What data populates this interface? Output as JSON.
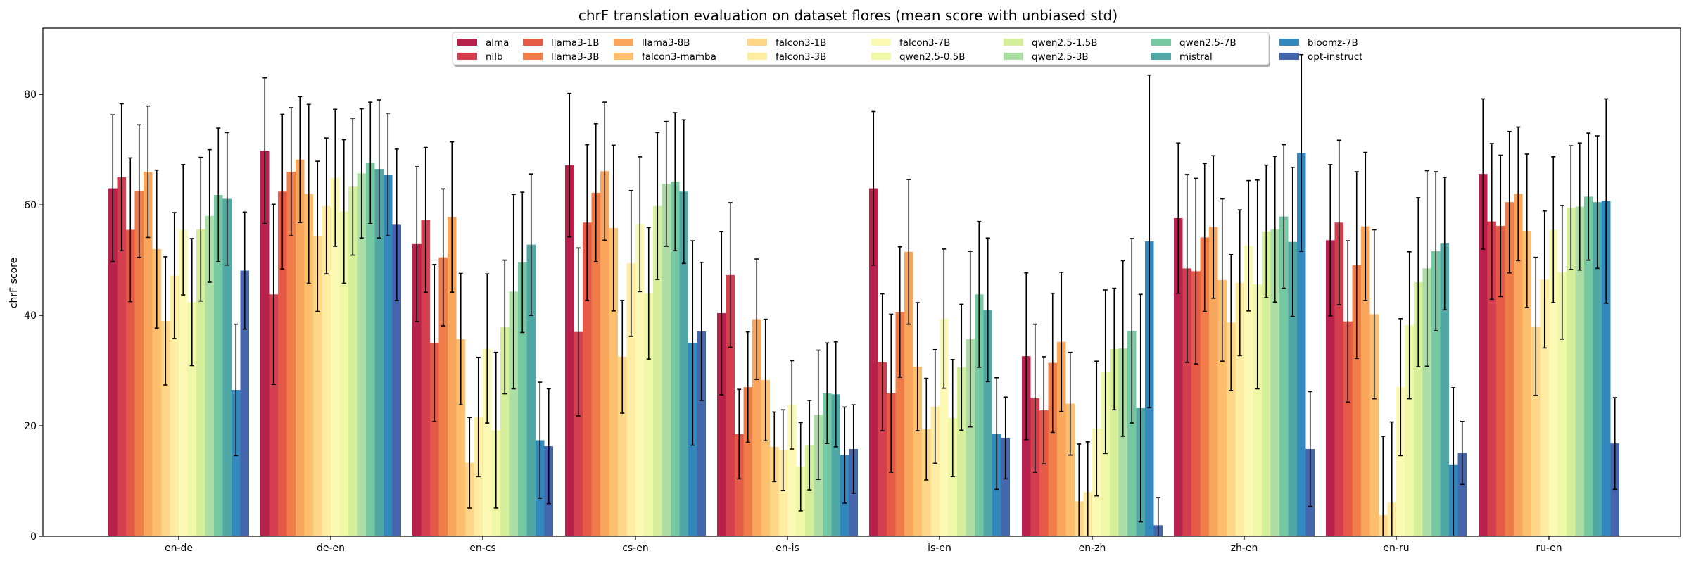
{
  "chart_data": {
    "type": "bar",
    "title": "chrF translation evaluation on dataset flores (mean score with unbiased std)",
    "xlabel": "",
    "ylabel": "chrF score",
    "ylim": [
      0,
      92
    ],
    "yticks": [
      0,
      20,
      40,
      60,
      80
    ],
    "grid": false,
    "legend_position": "top-center",
    "categories": [
      "en-de",
      "de-en",
      "en-cs",
      "cs-en",
      "en-is",
      "is-en",
      "en-zh",
      "zh-en",
      "en-ru",
      "ru-en"
    ],
    "series": [
      {
        "name": "alma",
        "color": "#b8214b",
        "values": [
          63.0,
          69.8,
          52.9,
          67.2,
          40.4,
          63.0,
          32.6,
          57.6,
          53.6,
          65.6
        ],
        "std": [
          13.3,
          13.2,
          14.0,
          13.0,
          14.8,
          13.9,
          15.1,
          13.6,
          13.7,
          13.6
        ]
      },
      {
        "name": "nllb",
        "color": "#d53e4f",
        "values": [
          65.0,
          43.8,
          57.3,
          37.0,
          47.3,
          31.5,
          25.0,
          48.5,
          56.8,
          57.0
        ],
        "std": [
          13.3,
          16.3,
          13.1,
          15.2,
          13.1,
          12.4,
          13.4,
          17.0,
          14.9,
          14.1
        ]
      },
      {
        "name": "llama3-1B",
        "color": "#e55a46",
        "values": [
          55.5,
          62.4,
          35.0,
          56.8,
          18.5,
          25.9,
          22.8,
          48.0,
          38.9,
          56.2
        ],
        "std": [
          13.0,
          14.0,
          14.2,
          14.1,
          8.1,
          14.3,
          9.7,
          16.8,
          14.6,
          12.8
        ]
      },
      {
        "name": "llama3-3B",
        "color": "#f07c4a",
        "values": [
          62.5,
          66.0,
          50.5,
          62.2,
          27.0,
          40.6,
          31.4,
          54.1,
          49.1,
          60.5
        ],
        "std": [
          12.0,
          11.6,
          12.4,
          12.5,
          10.0,
          11.8,
          12.6,
          13.4,
          16.9,
          12.8
        ]
      },
      {
        "name": "llama3-8B",
        "color": "#f9a55b",
        "values": [
          66.0,
          68.2,
          57.8,
          66.1,
          39.3,
          51.5,
          35.2,
          56.0,
          56.1,
          62.0
        ],
        "std": [
          11.9,
          11.4,
          13.6,
          12.5,
          10.9,
          13.1,
          12.6,
          12.9,
          13.4,
          12.1
        ]
      },
      {
        "name": "falcon3-mamba",
        "color": "#fdbe6e",
        "values": [
          52.0,
          62.0,
          35.7,
          55.8,
          28.3,
          30.7,
          24.0,
          46.4,
          40.2,
          55.3
        ],
        "std": [
          14.3,
          16.2,
          11.9,
          15.0,
          11.0,
          11.6,
          9.3,
          14.7,
          15.3,
          13.9
        ]
      },
      {
        "name": "falcon3-1B",
        "color": "#fdd688",
        "values": [
          39.0,
          54.3,
          13.3,
          32.5,
          16.2,
          19.4,
          6.3,
          38.7,
          3.8,
          38.0
        ],
        "std": [
          11.6,
          13.6,
          8.2,
          10.2,
          6.3,
          9.2,
          10.4,
          12.3,
          14.3,
          12.5
        ]
      },
      {
        "name": "falcon3-3B",
        "color": "#feeca2",
        "values": [
          47.2,
          59.8,
          21.6,
          49.4,
          15.6,
          23.5,
          8.0,
          45.9,
          6.1,
          46.5
        ],
        "std": [
          11.4,
          12.3,
          10.8,
          13.2,
          7.3,
          10.3,
          9.1,
          13.2,
          14.6,
          12.4
        ]
      },
      {
        "name": "falcon3-7B",
        "color": "#fbf9b3",
        "values": [
          55.5,
          64.9,
          34.0,
          56.5,
          23.8,
          39.4,
          19.5,
          52.6,
          27.0,
          55.5
        ],
        "std": [
          11.8,
          12.4,
          13.5,
          12.2,
          8.0,
          12.6,
          12.2,
          11.8,
          12.4,
          13.2
        ]
      },
      {
        "name": "qwen2.5-0.5B",
        "color": "#eef8a7",
        "values": [
          42.4,
          58.8,
          19.2,
          44.0,
          12.6,
          21.4,
          29.8,
          45.6,
          38.2,
          47.8
        ],
        "std": [
          11.5,
          13.0,
          14.1,
          11.9,
          8.0,
          10.6,
          14.8,
          18.9,
          13.3,
          12.1
        ]
      },
      {
        "name": "qwen2.5-1.5B",
        "color": "#d4ee9a",
        "values": [
          55.6,
          63.3,
          37.9,
          59.8,
          16.5,
          30.6,
          33.9,
          55.2,
          46.0,
          59.5
        ],
        "std": [
          13.0,
          12.4,
          12.1,
          13.3,
          8.1,
          11.4,
          11.0,
          12.0,
          15.3,
          11.2
        ]
      },
      {
        "name": "qwen2.5-3B",
        "color": "#abdda4",
        "values": [
          58.0,
          65.7,
          44.3,
          63.8,
          22.0,
          35.7,
          34.0,
          55.6,
          48.5,
          59.7
        ],
        "std": [
          12.0,
          11.7,
          17.6,
          11.3,
          11.7,
          15.9,
          15.9,
          13.2,
          17.7,
          11.5
        ]
      },
      {
        "name": "qwen2.5-7B",
        "color": "#76c8a3",
        "values": [
          61.8,
          67.6,
          49.6,
          64.2,
          25.9,
          43.8,
          37.2,
          57.9,
          51.6,
          61.5
        ],
        "std": [
          12.1,
          11.0,
          12.7,
          12.5,
          9.1,
          13.2,
          16.7,
          13.0,
          14.4,
          11.5
        ]
      },
      {
        "name": "mistral",
        "color": "#4fa8a5",
        "values": [
          61.1,
          66.5,
          52.8,
          62.4,
          25.7,
          41.0,
          23.2,
          53.3,
          53.0,
          60.5
        ],
        "std": [
          12.0,
          12.5,
          12.8,
          13.0,
          9.5,
          13.0,
          20.6,
          13.5,
          12.0,
          12.0
        ]
      },
      {
        "name": "bloomz-7B",
        "color": "#3288bd",
        "values": [
          26.5,
          65.5,
          17.4,
          35.0,
          14.7,
          18.6,
          53.4,
          69.4,
          12.9,
          60.7
        ],
        "std": [
          11.9,
          11.1,
          10.5,
          18.5,
          8.7,
          10.1,
          30.1,
          17.8,
          14.0,
          18.5
        ]
      },
      {
        "name": "opt-instruct",
        "color": "#4566ad",
        "values": [
          48.1,
          56.4,
          16.3,
          37.1,
          15.8,
          17.8,
          2.0,
          15.8,
          15.1,
          16.8
        ],
        "std": [
          10.6,
          13.7,
          10.4,
          12.5,
          8.0,
          7.4,
          5.0,
          10.4,
          5.7,
          8.3
        ]
      }
    ]
  }
}
